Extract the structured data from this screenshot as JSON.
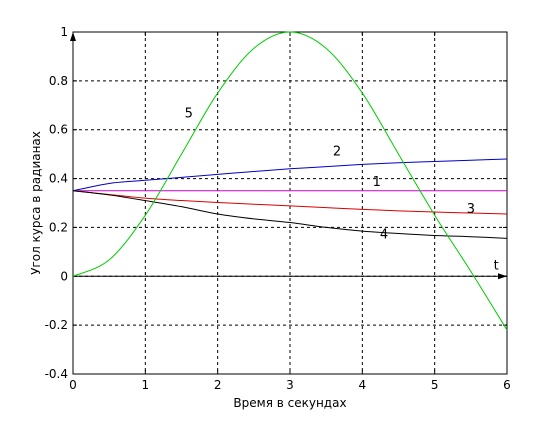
{
  "chart_data": {
    "type": "line",
    "xlabel": "Время в секундах",
    "ylabel": "Угол курса в радианах",
    "xlim": [
      0,
      6
    ],
    "ylim": [
      -0.4,
      1
    ],
    "grid": true,
    "legend": "none",
    "x_ticks": [
      "0",
      "1",
      "2",
      "3",
      "4",
      "5",
      "6"
    ],
    "y_ticks": [
      "-0.4",
      "-0.2",
      "0",
      "0.2",
      "0.4",
      "0.6",
      "0.8",
      "1"
    ],
    "t_axis_label": "t",
    "x": [
      0,
      0.5,
      1,
      1.5,
      2,
      2.5,
      3,
      3.5,
      4,
      4.5,
      5,
      5.5,
      6
    ],
    "series": [
      {
        "name": "1",
        "color": "#cc00cc",
        "values": [
          0.35,
          0.35,
          0.35,
          0.35,
          0.35,
          0.35,
          0.35,
          0.35,
          0.35,
          0.35,
          0.35,
          0.35,
          0.35
        ]
      },
      {
        "name": "2",
        "color": "#0000cc",
        "values": [
          0.35,
          0.38,
          0.393,
          0.405,
          0.417,
          0.429,
          0.44,
          0.449,
          0.458,
          0.465,
          0.47,
          0.475,
          0.48
        ]
      },
      {
        "name": "3",
        "color": "#dd0000",
        "values": [
          0.35,
          0.335,
          0.32,
          0.31,
          0.302,
          0.295,
          0.288,
          0.281,
          0.274,
          0.268,
          0.263,
          0.259,
          0.255
        ]
      },
      {
        "name": "4",
        "color": "#000000",
        "values": [
          0.35,
          0.333,
          0.31,
          0.285,
          0.255,
          0.235,
          0.22,
          0.2,
          0.185,
          0.175,
          0.167,
          0.162,
          0.155
        ]
      },
      {
        "name": "5",
        "color": "#00cc00",
        "values": [
          0.0,
          0.067,
          0.25,
          0.5,
          0.75,
          0.933,
          1.0,
          0.933,
          0.75,
          0.5,
          0.25,
          0.02,
          -0.22
        ]
      }
    ]
  }
}
